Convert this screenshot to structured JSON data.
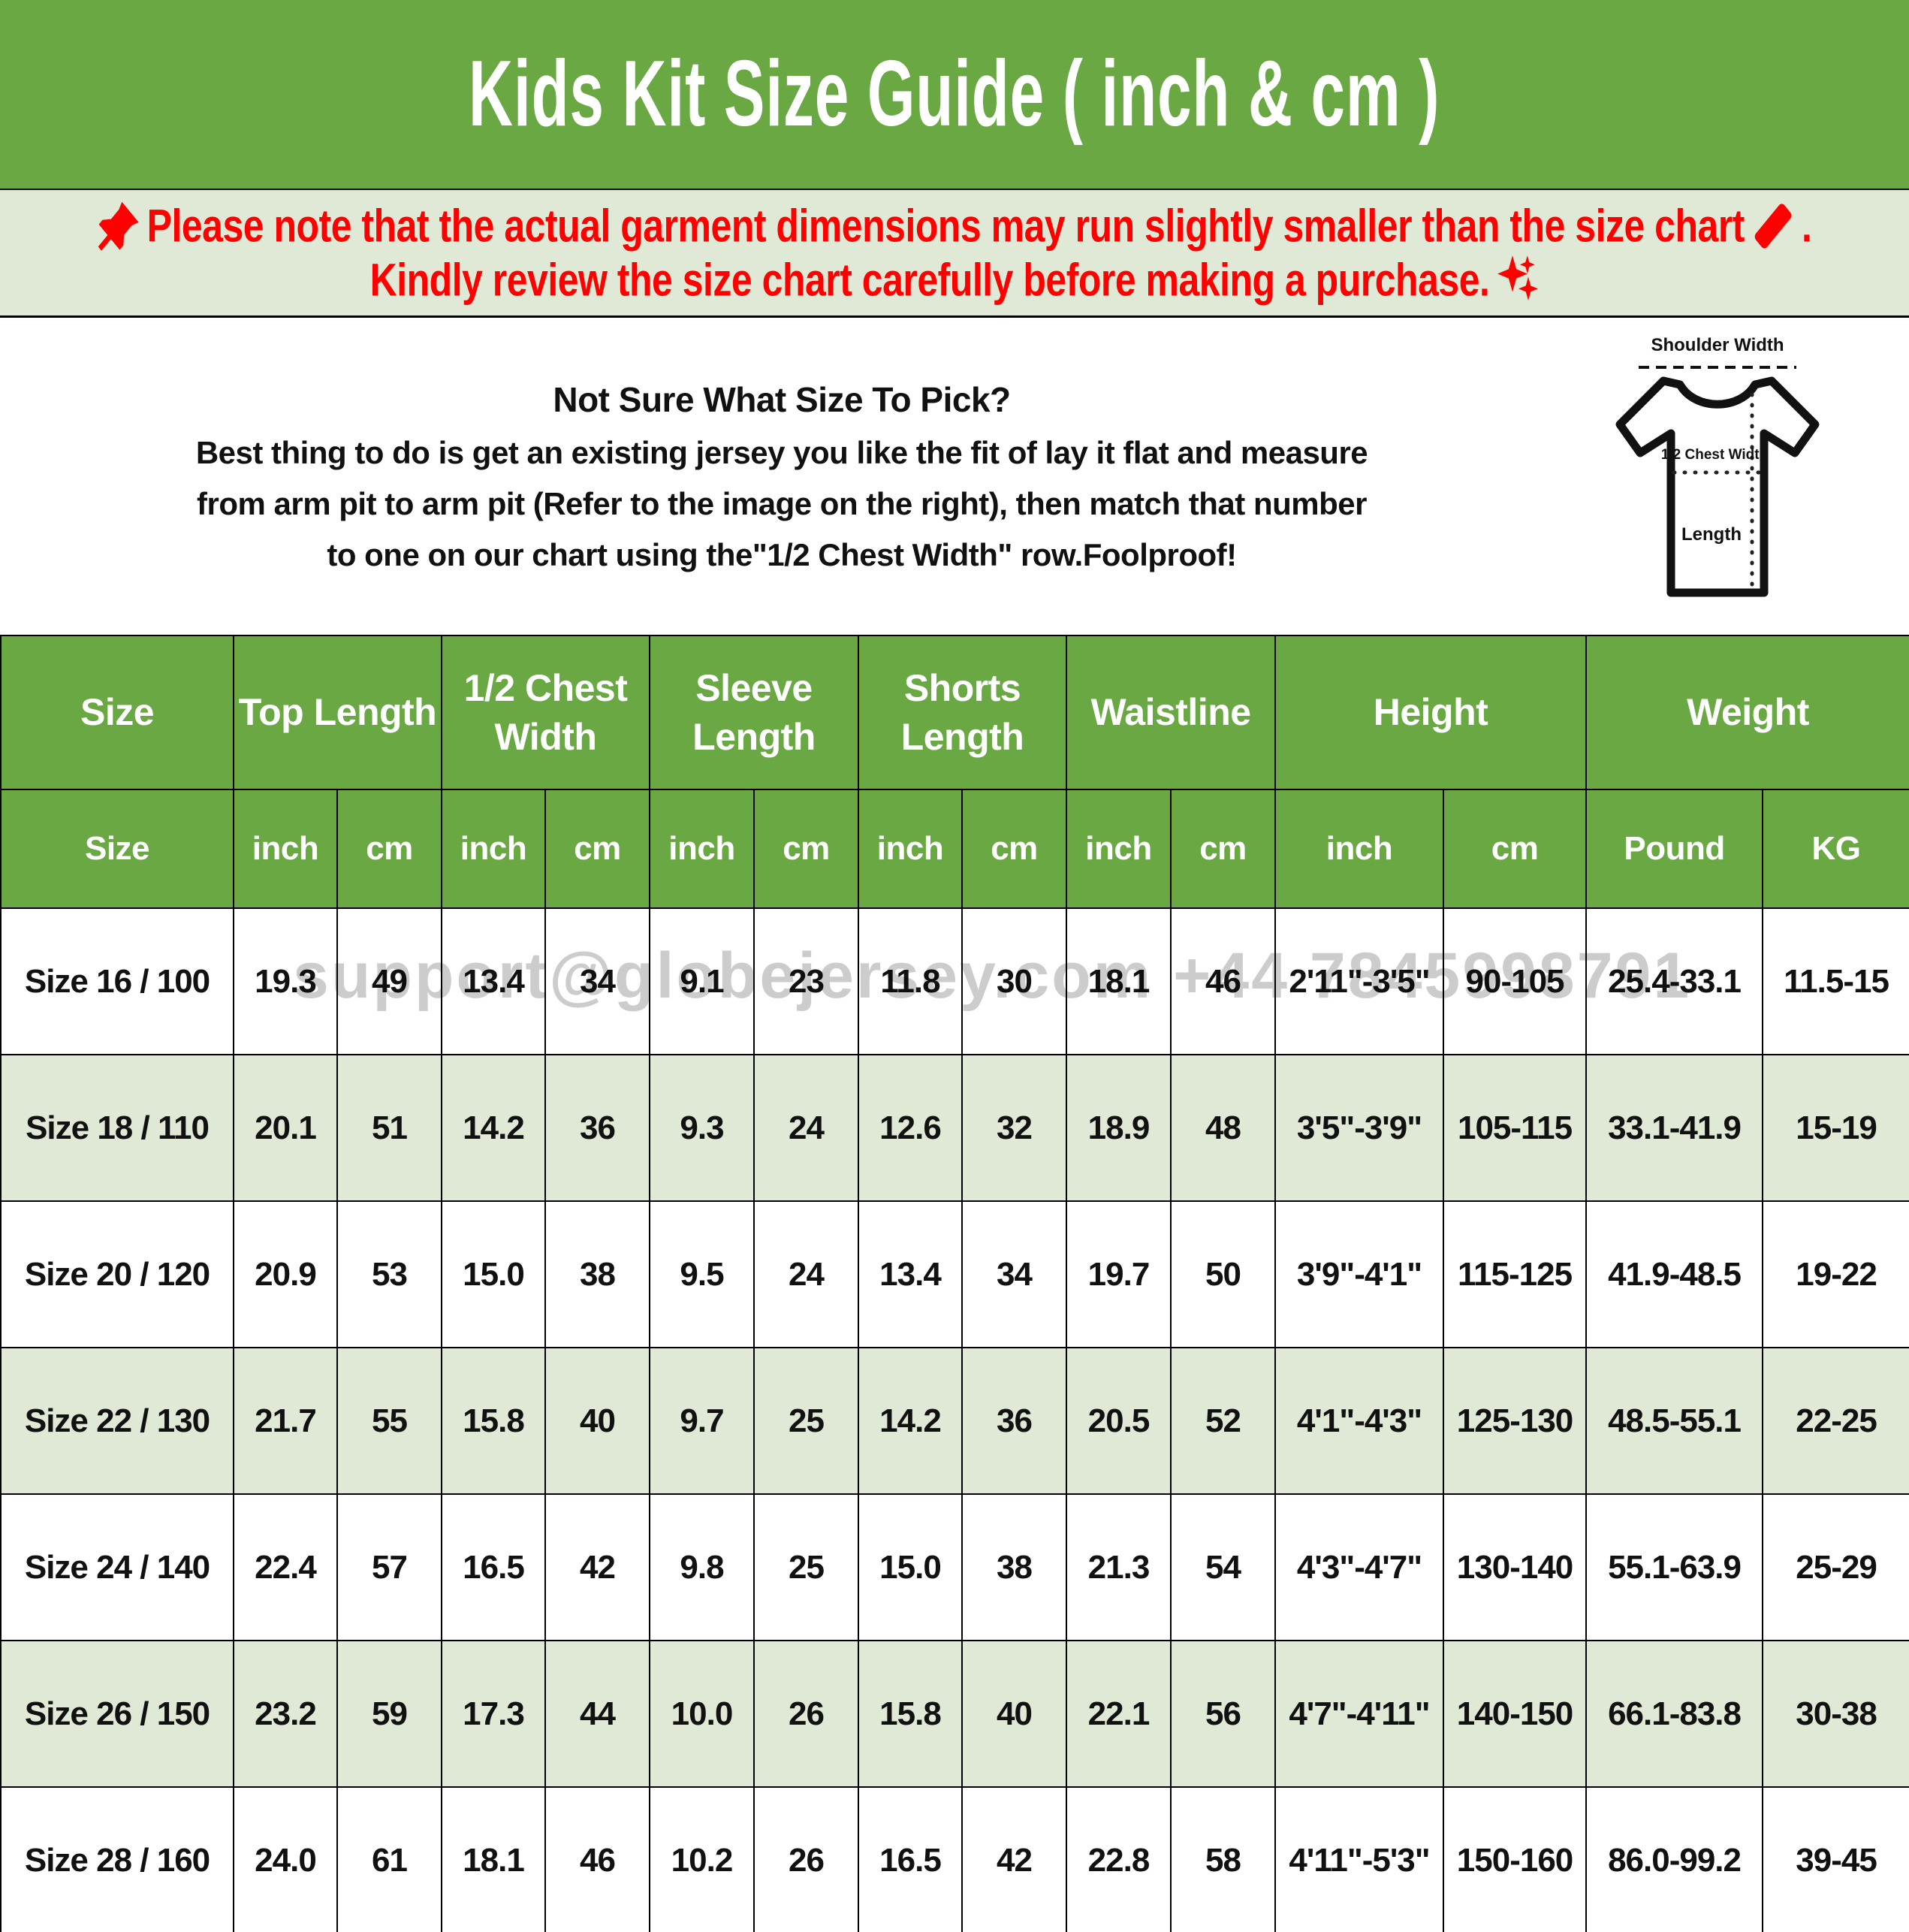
{
  "header": {
    "title": "Kids Kit Size Guide ( inch & cm )"
  },
  "notice": {
    "line1_text": "Please note that the actual garment dimensions may run slightly smaller than the size chart",
    "line1_period": ".",
    "line2_text": "Kindly review the size chart carefully before making a purchase."
  },
  "icons": {
    "notice_prefix": "pushpin",
    "notice_suffix": "ruler",
    "line2_suffix": "sparkles"
  },
  "guide": {
    "heading": "Not Sure What Size To Pick?",
    "line1": "Best thing to do is get an existing jersey you like the fit of lay it flat and measure",
    "line2": "from arm pit to arm pit (Refer to the image on the right), then match that number",
    "line3": "to one on our chart using the\"1/2 Chest Width\" row.Foolproof!"
  },
  "diagram": {
    "shoulder_width": "Shoulder Width",
    "half_chest_width": "1/2 Chest Width",
    "length": "Length"
  },
  "watermark": {
    "text": "support@globejersey.com +44 7845998791"
  },
  "colors": {
    "header_green": "#6aa844",
    "band_green": "#dfe9d5",
    "row_alt_green": "#dfe9d5",
    "notice_red": "#ff0000",
    "watermark_gray": "#c7c7c7",
    "text_black": "#111111"
  },
  "table": {
    "groups": [
      {
        "label": "Size",
        "colspan": 1
      },
      {
        "label": "Top Length",
        "colspan": 2
      },
      {
        "label": "1/2 Chest Width",
        "colspan": 2
      },
      {
        "label": "Sleeve Length",
        "colspan": 2
      },
      {
        "label": "Shorts Length",
        "colspan": 2
      },
      {
        "label": "Waistline",
        "colspan": 2
      },
      {
        "label": "Height",
        "colspan": 2
      },
      {
        "label": "Weight",
        "colspan": 2
      }
    ],
    "subheaders": [
      "Size",
      "inch",
      "cm",
      "inch",
      "cm",
      "inch",
      "cm",
      "inch",
      "cm",
      "inch",
      "cm",
      "inch",
      "cm",
      "Pound",
      "KG"
    ],
    "rows": [
      [
        "Size 16 / 100",
        "19.3",
        "49",
        "13.4",
        "34",
        "9.1",
        "23",
        "11.8",
        "30",
        "18.1",
        "46",
        "2'11\"-3'5\"",
        "90-105",
        "25.4-33.1",
        "11.5-15"
      ],
      [
        "Size 18 / 110",
        "20.1",
        "51",
        "14.2",
        "36",
        "9.3",
        "24",
        "12.6",
        "32",
        "18.9",
        "48",
        "3'5\"-3'9\"",
        "105-115",
        "33.1-41.9",
        "15-19"
      ],
      [
        "Size 20 / 120",
        "20.9",
        "53",
        "15.0",
        "38",
        "9.5",
        "24",
        "13.4",
        "34",
        "19.7",
        "50",
        "3'9\"-4'1\"",
        "115-125",
        "41.9-48.5",
        "19-22"
      ],
      [
        "Size 22 / 130",
        "21.7",
        "55",
        "15.8",
        "40",
        "9.7",
        "25",
        "14.2",
        "36",
        "20.5",
        "52",
        "4'1\"-4'3\"",
        "125-130",
        "48.5-55.1",
        "22-25"
      ],
      [
        "Size 24 / 140",
        "22.4",
        "57",
        "16.5",
        "42",
        "9.8",
        "25",
        "15.0",
        "38",
        "21.3",
        "54",
        "4'3\"-4'7\"",
        "130-140",
        "55.1-63.9",
        "25-29"
      ],
      [
        "Size 26 / 150",
        "23.2",
        "59",
        "17.3",
        "44",
        "10.0",
        "26",
        "15.8",
        "40",
        "22.1",
        "56",
        "4'7\"-4'11\"",
        "140-150",
        "66.1-83.8",
        "30-38"
      ],
      [
        "Size 28 / 160",
        "24.0",
        "61",
        "18.1",
        "46",
        "10.2",
        "26",
        "16.5",
        "42",
        "22.8",
        "58",
        "4'11\"-5'3\"",
        "150-160",
        "86.0-99.2",
        "39-45"
      ]
    ]
  }
}
